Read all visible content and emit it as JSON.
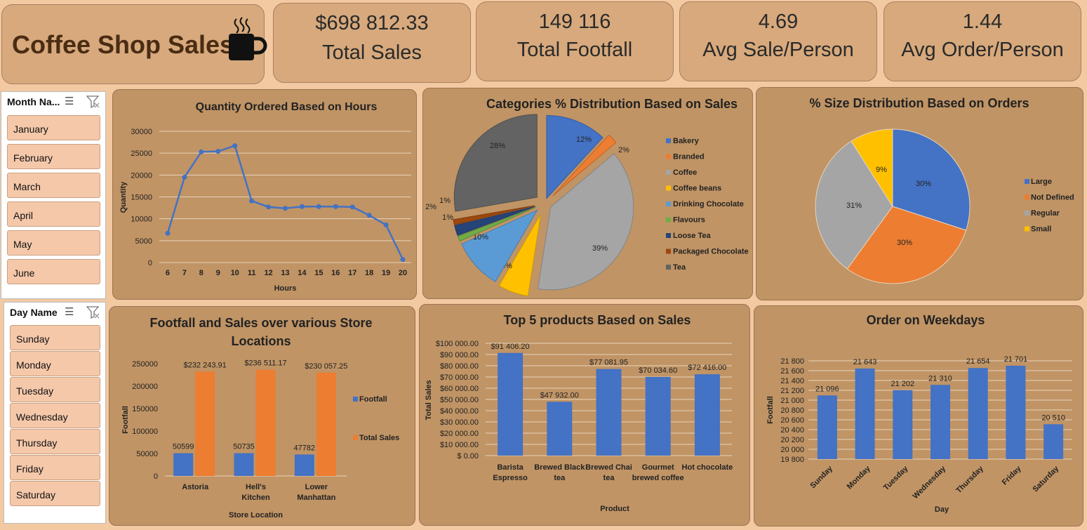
{
  "header": {
    "title": "Coffee Shop Sales"
  },
  "kpis": [
    {
      "value": "$698 812.33",
      "label": "Total Sales"
    },
    {
      "value": "149 116",
      "label": "Total Footfall"
    },
    {
      "value": "4.69",
      "label": "Avg Sale/Person"
    },
    {
      "value": "1.44",
      "label": "Avg Order/Person"
    }
  ],
  "month_slicer": {
    "header": "Month Na...",
    "items": [
      "January",
      "February",
      "March",
      "April",
      "May",
      "June"
    ]
  },
  "day_slicer": {
    "header": "Day Name",
    "items": [
      "Sunday",
      "Monday",
      "Tuesday",
      "Wednesday",
      "Thursday",
      "Friday",
      "Saturday"
    ]
  },
  "colors": {
    "blue": "#4472c4",
    "orange": "#ed7d31",
    "gray": "#a5a5a5",
    "yellow": "#ffc000",
    "lightblue": "#5b9bd5",
    "green": "#70ad47",
    "navy": "#264478",
    "brown": "#9e480e",
    "darkgray": "#636363"
  },
  "chart_data": [
    {
      "id": "hours",
      "type": "line",
      "title": "Quantity Ordered Based on Hours",
      "xlabel": "Hours",
      "ylabel": "Quantity",
      "x": [
        6,
        7,
        8,
        9,
        10,
        11,
        12,
        13,
        14,
        15,
        16,
        17,
        18,
        19,
        20
      ],
      "values": [
        6700,
        19500,
        25300,
        25400,
        26700,
        14100,
        12700,
        12400,
        12800,
        12800,
        12800,
        12700,
        10800,
        8600,
        700
      ],
      "yticks": [
        "0",
        "5000",
        "10000",
        "15000",
        "20000",
        "25000",
        "30000"
      ],
      "ylim": [
        0,
        30000
      ],
      "grid": true
    },
    {
      "id": "categories",
      "type": "pie",
      "title": "Categories % Distribution Based on Sales",
      "labels": [
        "Bakery",
        "Branded",
        "Coffee",
        "Coffee beans",
        "Drinking Chocolate",
        "Flavours",
        "Loose Tea",
        "Packaged Chocolate",
        "Tea"
      ],
      "values": [
        12,
        2,
        39,
        6,
        10,
        1,
        2,
        1,
        28
      ],
      "data_labels": [
        "12%",
        "2%",
        "39%",
        "6%",
        "10%",
        "1%",
        "2%",
        "1%",
        "28%"
      ],
      "legend": "right"
    },
    {
      "id": "sizes",
      "type": "pie",
      "title": "% Size Distribution Based on Orders",
      "labels": [
        "Large",
        "Not Defined",
        "Regular",
        "Small"
      ],
      "values": [
        30,
        30,
        31,
        9
      ],
      "data_labels": [
        "30%",
        "30%",
        "31%",
        "9%"
      ],
      "legend": "right"
    },
    {
      "id": "stores",
      "type": "bar",
      "title": "Footfall and Sales over various Store Locations",
      "xlabel": "Store Location",
      "ylabel": "Footfall",
      "categories": [
        "Astoria",
        "Hell's Kitchen",
        "Lower Manhattan"
      ],
      "series": [
        {
          "name": "Footfall",
          "values": [
            50599,
            50735,
            47782
          ],
          "labels": [
            "50599",
            "50735",
            "47782"
          ]
        },
        {
          "name": "Total Sales",
          "values": [
            232243.91,
            236511.17,
            230057.25
          ],
          "labels": [
            "$232 243.91",
            "$236 511.17",
            "$230 057.25"
          ]
        }
      ],
      "yticks": [
        "0",
        "50000",
        "100000",
        "150000",
        "200000",
        "250000"
      ],
      "ylim": [
        0,
        250000
      ],
      "legend": "right"
    },
    {
      "id": "products",
      "type": "bar",
      "title": "Top 5 products Based on Sales",
      "xlabel": "Product",
      "ylabel": "Total Sales",
      "categories": [
        "Barista Espresso",
        "Brewed Black tea",
        "Brewed Chai tea",
        "Gourmet brewed coffee",
        "Hot chocolate"
      ],
      "values": [
        91406.2,
        47932,
        77081.95,
        70034.6,
        72416
      ],
      "data_labels": [
        "$91 406.20",
        "$47 932.00",
        "$77 081.95",
        "$70 034.60",
        "$72 416.00"
      ],
      "yticks": [
        "$ 0.00",
        "$10 000.00",
        "$20 000.00",
        "$30 000.00",
        "$40 000.00",
        "$50 000.00",
        "$60 000.00",
        "$70 000.00",
        "$80 000.00",
        "$90 000.00",
        "$100 000.00"
      ],
      "ylim": [
        0,
        100000
      ]
    },
    {
      "id": "weekdays",
      "type": "bar",
      "title": "Order on Weekdays",
      "xlabel": "Day",
      "ylabel": "Footfall",
      "categories": [
        "Sunday",
        "Monday",
        "Tuesday",
        "Wednesday",
        "Thursday",
        "Friday",
        "Saturday"
      ],
      "values": [
        21096,
        21643,
        21202,
        21310,
        21654,
        21701,
        20510
      ],
      "data_labels": [
        "21 096",
        "21 643",
        "21 202",
        "21 310",
        "21 654",
        "21 701",
        "20 510"
      ],
      "yticks": [
        "19 800",
        "20 000",
        "20 200",
        "20 400",
        "20 600",
        "20 800",
        "21 000",
        "21 200",
        "21 400",
        "21 600",
        "21 800"
      ],
      "ylim": [
        19800,
        21800
      ]
    }
  ]
}
